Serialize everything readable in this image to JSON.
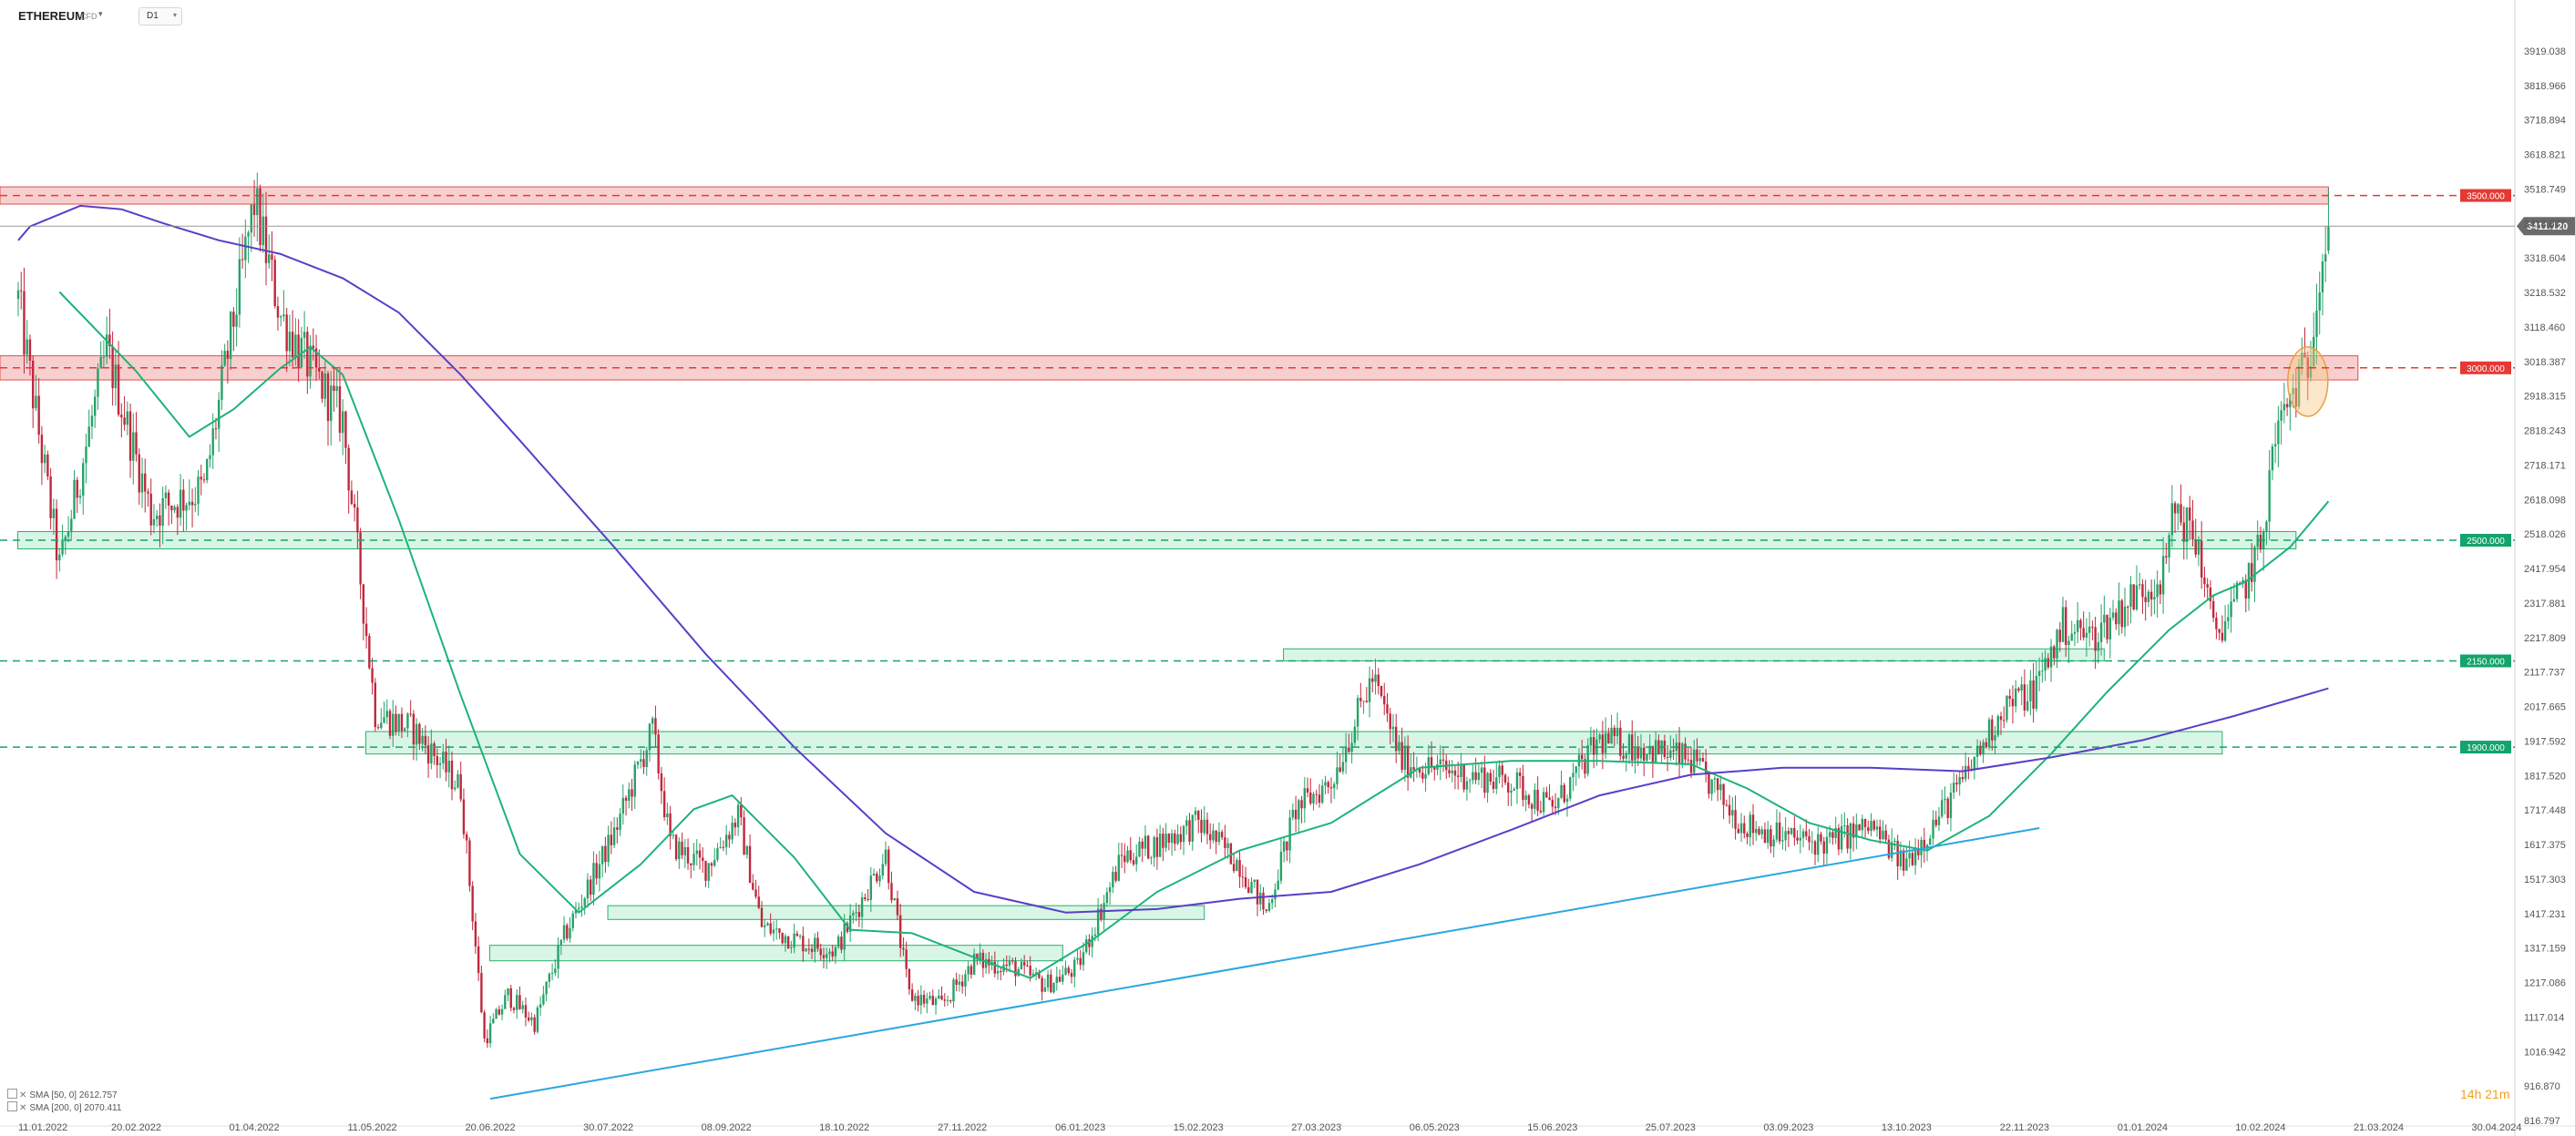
{
  "toolbar": {
    "symbol": "ETHEREUM",
    "symbol_sub": "CFD",
    "timeframe": "D1"
  },
  "legend": [
    {
      "label": "SMA [50, 0] 2612.757"
    },
    {
      "label": "SMA [200, 0] 2070.411"
    }
  ],
  "countdown": "14h 21m",
  "colors": {
    "up_candle": "#26a269",
    "down_candle": "#c0283c",
    "sma50": "#1db37a",
    "sma200": "#5a3ec8",
    "trendline": "#29a6e0",
    "resistance_zone": "#f3a8a8",
    "support_zone": "#bfeed5",
    "price_badge": "#6b6b6b"
  },
  "chart_data": {
    "type": "candlestick",
    "symbol": "ETHEREUM",
    "timeframe": "D1",
    "ylim": [
      816.797,
      3919.038
    ],
    "y_ticks": [
      "3919.038",
      "3818.966",
      "3718.894",
      "3618.821",
      "3518.749",
      "3418.677",
      "3318.604",
      "3218.532",
      "3118.460",
      "3018.387",
      "2918.315",
      "2818.243",
      "2718.171",
      "2618.098",
      "2518.026",
      "2417.954",
      "2317.881",
      "2217.809",
      "2117.737",
      "2017.665",
      "1917.592",
      "1817.520",
      "1717.448",
      "1617.375",
      "1517.303",
      "1417.231",
      "1317.159",
      "1217.086",
      "1117.014",
      "1016.942",
      "916.870",
      "816.797"
    ],
    "x_ticks": [
      "11.01.2022",
      "20.02.2022",
      "01.04.2022",
      "11.05.2022",
      "20.06.2022",
      "30.07.2022",
      "08.09.2022",
      "18.10.2022",
      "27.11.2022",
      "06.01.2023",
      "15.02.2023",
      "27.03.2023",
      "06.05.2023",
      "15.06.2023",
      "25.07.2023",
      "03.09.2023",
      "13.10.2023",
      "22.11.2023",
      "01.01.2024",
      "10.02.2024",
      "21.03.2024",
      "30.04.2024"
    ],
    "current_price": "3411.120",
    "levels": [
      {
        "price": 3500,
        "label": "3500.000",
        "color": "#e53935"
      },
      {
        "price": 3000,
        "label": "3000.000",
        "color": "#e53935"
      },
      {
        "price": 2500,
        "label": "2500.000",
        "color": "#13a36b"
      },
      {
        "price": 2150,
        "label": "2150.000",
        "color": "#13a36b"
      },
      {
        "price": 1900,
        "label": "1900.000",
        "color": "#13a36b"
      }
    ],
    "zones": [
      {
        "kind": "resistance",
        "from_date": "11.01.2022",
        "to_date": "04.03.2024",
        "low": 3475,
        "high": 3525
      },
      {
        "kind": "resistance",
        "from_date": "11.01.2022",
        "to_date": "14.03.2024",
        "low": 2965,
        "high": 3035
      },
      {
        "kind": "support",
        "from_date": "17.01.2022",
        "to_date": "22.02.2024",
        "low": 2475,
        "high": 2525
      },
      {
        "kind": "support",
        "from_date": "15.05.2022",
        "to_date": "28.01.2024",
        "low": 1880,
        "high": 1945
      },
      {
        "kind": "support",
        "from_date": "22.03.2023",
        "to_date": "19.12.2023",
        "low": 2150,
        "high": 2185
      },
      {
        "kind": "support",
        "from_date": "05.08.2022",
        "to_date": "17.02.2023",
        "low": 1400,
        "high": 1440
      },
      {
        "kind": "support",
        "from_date": "26.06.2022",
        "to_date": "31.12.2022",
        "low": 1280,
        "high": 1325
      }
    ],
    "trendline": [
      {
        "date": "20.06.2022",
        "price": 880
      },
      {
        "date": "27.11.2023",
        "price": 1665
      }
    ],
    "series": [
      {
        "name": "SMA [50, 0]",
        "value_last": 2612.757,
        "points": [
          [
            "25.01.2022",
            3220
          ],
          [
            "20.02.2022",
            2990
          ],
          [
            "10.03.2022",
            2800
          ],
          [
            "25.03.2022",
            2880
          ],
          [
            "10.04.2022",
            3000
          ],
          [
            "20.04.2022",
            3060
          ],
          [
            "01.05.2022",
            2980
          ],
          [
            "20.05.2022",
            2560
          ],
          [
            "10.06.2022",
            2050
          ],
          [
            "30.06.2022",
            1590
          ],
          [
            "20.07.2022",
            1420
          ],
          [
            "10.08.2022",
            1560
          ],
          [
            "28.08.2022",
            1720
          ],
          [
            "10.09.2022",
            1760
          ],
          [
            "01.10.2022",
            1580
          ],
          [
            "20.10.2022",
            1370
          ],
          [
            "10.11.2022",
            1360
          ],
          [
            "01.12.2022",
            1290
          ],
          [
            "20.12.2022",
            1230
          ],
          [
            "10.01.2023",
            1340
          ],
          [
            "01.02.2023",
            1480
          ],
          [
            "01.03.2023",
            1600
          ],
          [
            "01.04.2023",
            1680
          ],
          [
            "01.05.2023",
            1840
          ],
          [
            "01.06.2023",
            1860
          ],
          [
            "01.07.2023",
            1860
          ],
          [
            "01.08.2023",
            1850
          ],
          [
            "20.08.2023",
            1780
          ],
          [
            "10.09.2023",
            1680
          ],
          [
            "01.10.2023",
            1630
          ],
          [
            "20.10.2023",
            1600
          ],
          [
            "10.11.2023",
            1700
          ],
          [
            "01.12.2023",
            1880
          ],
          [
            "20.12.2023",
            2060
          ],
          [
            "10.01.2024",
            2240
          ],
          [
            "25.01.2024",
            2340
          ],
          [
            "05.02.2024",
            2380
          ],
          [
            "20.02.2024",
            2480
          ],
          [
            "04.03.2024",
            2612.757
          ]
        ]
      },
      {
        "name": "SMA [200, 0]",
        "value_last": 2070.411,
        "points": [
          [
            "11.01.2022",
            3370
          ],
          [
            "15.01.2022",
            3410
          ],
          [
            "01.02.2022",
            3470
          ],
          [
            "15.02.2022",
            3460
          ],
          [
            "01.03.2022",
            3420
          ],
          [
            "20.03.2022",
            3370
          ],
          [
            "10.04.2022",
            3330
          ],
          [
            "01.05.2022",
            3260
          ],
          [
            "20.05.2022",
            3160
          ],
          [
            "10.06.2022",
            2980
          ],
          [
            "01.07.2022",
            2780
          ],
          [
            "01.08.2022",
            2480
          ],
          [
            "01.09.2022",
            2170
          ],
          [
            "01.10.2022",
            1900
          ],
          [
            "01.11.2022",
            1650
          ],
          [
            "01.12.2022",
            1480
          ],
          [
            "01.01.2023",
            1420
          ],
          [
            "01.02.2023",
            1430
          ],
          [
            "01.03.2023",
            1460
          ],
          [
            "01.04.2023",
            1480
          ],
          [
            "01.05.2023",
            1560
          ],
          [
            "01.06.2023",
            1660
          ],
          [
            "01.07.2023",
            1760
          ],
          [
            "01.08.2023",
            1820
          ],
          [
            "01.09.2023",
            1840
          ],
          [
            "01.10.2023",
            1840
          ],
          [
            "01.11.2023",
            1830
          ],
          [
            "01.12.2023",
            1870
          ],
          [
            "01.01.2024",
            1920
          ],
          [
            "01.02.2024",
            1990
          ],
          [
            "04.03.2024",
            2070.411
          ]
        ]
      }
    ],
    "candles_anchor": [
      [
        "11.01.2022",
        3200
      ],
      [
        "25.01.2022",
        2420
      ],
      [
        "10.02.2022",
        3050
      ],
      [
        "25.02.2022",
        2580
      ],
      [
        "15.03.2022",
        2650
      ],
      [
        "01.04.2022",
        3480
      ],
      [
        "10.04.2022",
        3150
      ],
      [
        "20.04.2022",
        3000
      ],
      [
        "01.05.2022",
        2850
      ],
      [
        "12.05.2022",
        2000
      ],
      [
        "25.05.2022",
        1950
      ],
      [
        "10.06.2022",
        1780
      ],
      [
        "18.06.2022",
        1050
      ],
      [
        "26.06.2022",
        1180
      ],
      [
        "05.07.2022",
        1100
      ],
      [
        "15.07.2022",
        1350
      ],
      [
        "01.08.2022",
        1650
      ],
      [
        "14.08.2022",
        1950
      ],
      [
        "20.08.2022",
        1620
      ],
      [
        "01.09.2022",
        1550
      ],
      [
        "12.09.2022",
        1700
      ],
      [
        "20.09.2022",
        1380
      ],
      [
        "05.10.2022",
        1330
      ],
      [
        "15.10.2022",
        1310
      ],
      [
        "01.11.2022",
        1590
      ],
      [
        "09.11.2022",
        1180
      ],
      [
        "20.11.2022",
        1150
      ],
      [
        "01.12.2022",
        1280
      ],
      [
        "15.12.2022",
        1260
      ],
      [
        "25.12.2022",
        1210
      ],
      [
        "05.01.2023",
        1260
      ],
      [
        "20.01.2023",
        1580
      ],
      [
        "01.02.2023",
        1620
      ],
      [
        "15.02.2023",
        1680
      ],
      [
        "01.03.2023",
        1560
      ],
      [
        "10.03.2023",
        1420
      ],
      [
        "20.03.2023",
        1720
      ],
      [
        "01.04.2023",
        1800
      ],
      [
        "15.04.2023",
        2100
      ],
      [
        "25.04.2023",
        1860
      ],
      [
        "10.05.2023",
        1830
      ],
      [
        "01.06.2023",
        1800
      ],
      [
        "15.06.2023",
        1720
      ],
      [
        "01.07.2023",
        1920
      ],
      [
        "15.07.2023",
        1900
      ],
      [
        "01.08.2023",
        1860
      ],
      [
        "18.08.2023",
        1680
      ],
      [
        "01.09.2023",
        1640
      ],
      [
        "15.09.2023",
        1620
      ],
      [
        "01.10.2023",
        1670
      ],
      [
        "12.10.2023",
        1560
      ],
      [
        "20.10.2023",
        1650
      ],
      [
        "01.11.2023",
        1800
      ],
      [
        "15.11.2023",
        2020
      ],
      [
        "25.11.2023",
        2060
      ],
      [
        "05.12.2023",
        2250
      ],
      [
        "15.12.2023",
        2220
      ],
      [
        "28.12.2023",
        2330
      ],
      [
        "08.01.2024",
        2400
      ],
      [
        "12.01.2024",
        2600
      ],
      [
        "20.01.2024",
        2480
      ],
      [
        "25.01.2024",
        2230
      ],
      [
        "01.02.2024",
        2300
      ],
      [
        "10.02.2024",
        2480
      ],
      [
        "15.02.2024",
        2800
      ],
      [
        "22.02.2024",
        2950
      ],
      [
        "26.02.2024",
        3000
      ],
      [
        "01.03.2024",
        3300
      ],
      [
        "04.03.2024",
        3411.12
      ]
    ]
  }
}
